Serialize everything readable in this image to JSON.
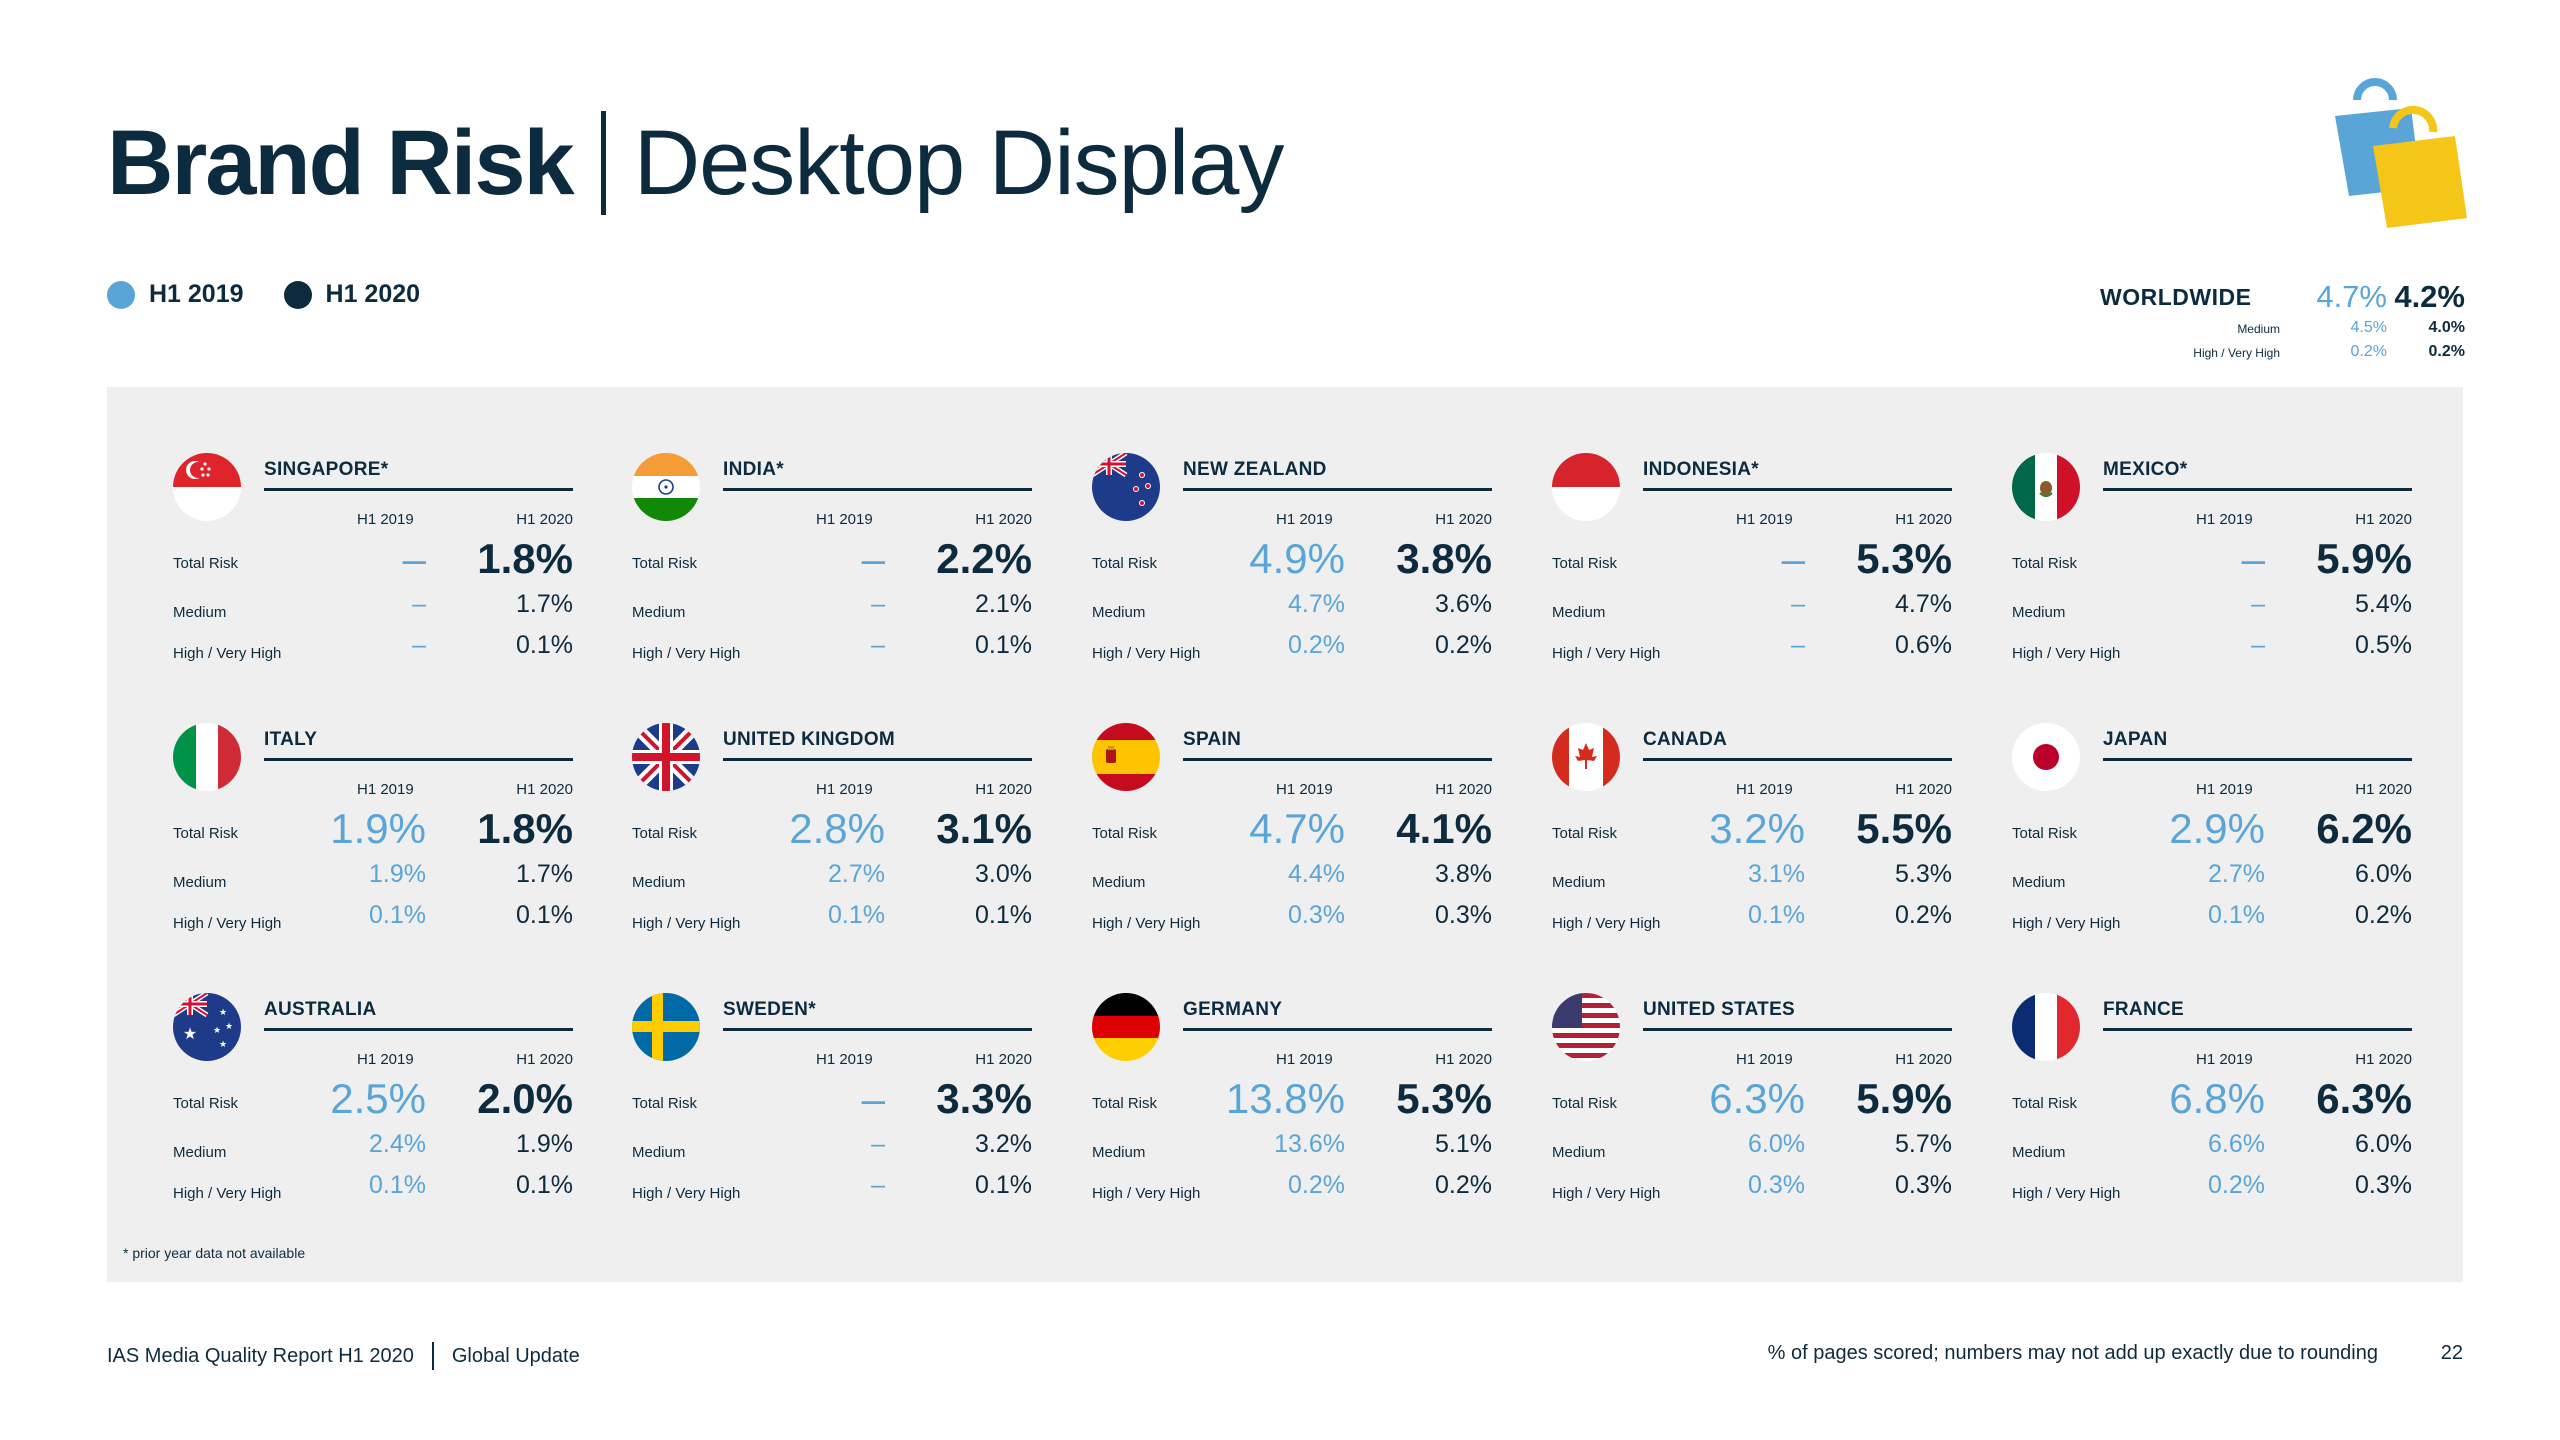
{
  "title": {
    "bold": "Brand Risk",
    "light": "Desktop Display"
  },
  "legend": {
    "y2019": "H1 2019",
    "y2020": "H1 2020"
  },
  "colors": {
    "h1_2019": "#5aa5d8",
    "h1_2020": "#0d2b3e",
    "panel": "#efefef"
  },
  "worldwide": {
    "label": "WORLDWIDE",
    "total_2019": "4.7%",
    "total_2020": "4.2%",
    "medium_label": "Medium",
    "medium_2019": "4.5%",
    "medium_2020": "4.0%",
    "high_label": "High / Very High",
    "high_2019": "0.2%",
    "high_2020": "0.2%"
  },
  "row_labels": {
    "total": "Total Risk",
    "medium": "Medium",
    "high": "High / Very High"
  },
  "col_headers": {
    "a": "H1 2019",
    "b": "H1 2020"
  },
  "countries": [
    {
      "name": "SINGAPORE*",
      "flag": "singapore-flag-icon",
      "t19": "–",
      "t20": "1.8%",
      "m19": "–",
      "m20": "1.7%",
      "h19": "–",
      "h20": "0.1%"
    },
    {
      "name": "INDIA*",
      "flag": "india-flag-icon",
      "t19": "–",
      "t20": "2.2%",
      "m19": "–",
      "m20": "2.1%",
      "h19": "–",
      "h20": "0.1%"
    },
    {
      "name": "NEW ZEALAND",
      "flag": "new-zealand-flag-icon",
      "t19": "4.9%",
      "t20": "3.8%",
      "m19": "4.7%",
      "m20": "3.6%",
      "h19": "0.2%",
      "h20": "0.2%"
    },
    {
      "name": "INDONESIA*",
      "flag": "indonesia-flag-icon",
      "t19": "–",
      "t20": "5.3%",
      "m19": "–",
      "m20": "4.7%",
      "h19": "–",
      "h20": "0.6%"
    },
    {
      "name": "MEXICO*",
      "flag": "mexico-flag-icon",
      "t19": "–",
      "t20": "5.9%",
      "m19": "–",
      "m20": "5.4%",
      "h19": "–",
      "h20": "0.5%"
    },
    {
      "name": "ITALY",
      "flag": "italy-flag-icon",
      "t19": "1.9%",
      "t20": "1.8%",
      "m19": "1.9%",
      "m20": "1.7%",
      "h19": "0.1%",
      "h20": "0.1%"
    },
    {
      "name": "UNITED KINGDOM",
      "flag": "uk-flag-icon",
      "t19": "2.8%",
      "t20": "3.1%",
      "m19": "2.7%",
      "m20": "3.0%",
      "h19": "0.1%",
      "h20": "0.1%"
    },
    {
      "name": "SPAIN",
      "flag": "spain-flag-icon",
      "t19": "4.7%",
      "t20": "4.1%",
      "m19": "4.4%",
      "m20": "3.8%",
      "h19": "0.3%",
      "h20": "0.3%"
    },
    {
      "name": "CANADA",
      "flag": "canada-flag-icon",
      "t19": "3.2%",
      "t20": "5.5%",
      "m19": "3.1%",
      "m20": "5.3%",
      "h19": "0.1%",
      "h20": "0.2%"
    },
    {
      "name": "JAPAN",
      "flag": "japan-flag-icon",
      "t19": "2.9%",
      "t20": "6.2%",
      "m19": "2.7%",
      "m20": "6.0%",
      "h19": "0.1%",
      "h20": "0.2%"
    },
    {
      "name": "AUSTRALIA",
      "flag": "australia-flag-icon",
      "t19": "2.5%",
      "t20": "2.0%",
      "m19": "2.4%",
      "m20": "1.9%",
      "h19": "0.1%",
      "h20": "0.1%"
    },
    {
      "name": "SWEDEN*",
      "flag": "sweden-flag-icon",
      "t19": "–",
      "t20": "3.3%",
      "m19": "–",
      "m20": "3.2%",
      "h19": "–",
      "h20": "0.1%"
    },
    {
      "name": "GERMANY",
      "flag": "germany-flag-icon",
      "t19": "13.8%",
      "t20": "5.3%",
      "m19": "13.6%",
      "m20": "5.1%",
      "h19": "0.2%",
      "h20": "0.2%"
    },
    {
      "name": "UNITED STATES",
      "flag": "us-flag-icon",
      "t19": "6.3%",
      "t20": "5.9%",
      "m19": "6.0%",
      "m20": "5.7%",
      "h19": "0.3%",
      "h20": "0.3%"
    },
    {
      "name": "FRANCE",
      "flag": "france-flag-icon",
      "t19": "6.8%",
      "t20": "6.3%",
      "m19": "6.6%",
      "m20": "6.0%",
      "h19": "0.2%",
      "h20": "0.3%"
    }
  ],
  "footnote": "* prior year data not available",
  "footer": {
    "report": "IAS Media Quality Report H1 2020",
    "section": "Global Update",
    "note": "% of pages scored; numbers may not add up exactly due to rounding",
    "page": "22"
  }
}
